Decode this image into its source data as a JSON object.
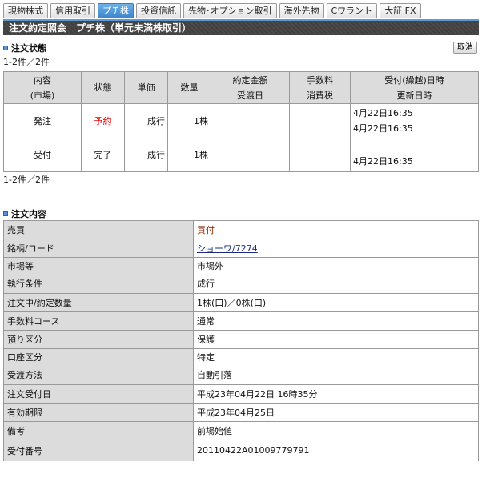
{
  "tabs": [
    {
      "label": "現物株式"
    },
    {
      "label": "信用取引"
    },
    {
      "label": "プチ株",
      "active": true
    },
    {
      "label": "投資信託"
    },
    {
      "label": "先物･オプション取引"
    },
    {
      "label": "海外先物"
    },
    {
      "label": "Cワラント"
    },
    {
      "label": "大証 FX"
    }
  ],
  "header": {
    "title": "注文約定照会　プチ株（単元未満株取引）"
  },
  "status": {
    "title": "注文状態",
    "cancel_label": "取消",
    "count_top": "1-2件／2件",
    "count_bottom": "1-2件／2件",
    "columns": [
      [
        "内容",
        "(市場)"
      ],
      [
        "状態",
        ""
      ],
      [
        "単価",
        ""
      ],
      [
        "数量",
        ""
      ],
      [
        "約定金額",
        "受渡日"
      ],
      [
        "手数料",
        "消費税"
      ],
      [
        "受付(繰越)日時",
        "更新日時"
      ]
    ],
    "rows": [
      {
        "type": "発注",
        "state": "予約",
        "price": "成行",
        "qty": "1株",
        "dt1": "4月22日16:35",
        "dt2": "4月22日16:35"
      },
      {
        "type": "受付",
        "state": "完了",
        "price": "成行",
        "qty": "1株",
        "dt1": "",
        "dt2": "4月22日16:35"
      }
    ]
  },
  "colors": {
    "accent": "#3a86cf",
    "state_reserved": "#e00000",
    "buy": "#8b2a00"
  },
  "detail": {
    "title": "注文内容",
    "buysell": {
      "k": "売買",
      "v": "買付"
    },
    "stock": {
      "k": "銘柄/コード",
      "v": "ショーワ/7274"
    },
    "market": {
      "k": "市場等",
      "v": "市場外"
    },
    "cond": {
      "k": "執行条件",
      "v": "成行"
    },
    "qty": {
      "k": "注文中/約定数量",
      "v": "1株(口)／0株(口)"
    },
    "fee": {
      "k": "手数料コース",
      "v": "通常"
    },
    "custody": {
      "k": "預り区分",
      "v": "保護"
    },
    "account": {
      "k": "口座区分",
      "v": "特定"
    },
    "settle": {
      "k": "受渡方法",
      "v": "自動引落"
    },
    "date": {
      "k": "注文受付日",
      "v": "平成23年04月22日 16時35分"
    },
    "expiry": {
      "k": "有効期限",
      "v": "平成23年04月25日"
    },
    "note": {
      "k": "備考",
      "v": "前場始値"
    },
    "number": {
      "k": "受付番号",
      "v": "20110422A01009779791"
    }
  }
}
